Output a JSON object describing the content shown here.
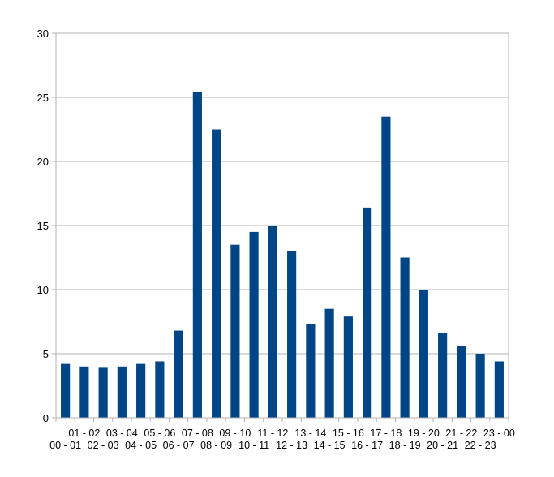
{
  "chart_data": {
    "type": "bar",
    "title": "",
    "xlabel": "",
    "ylabel": "",
    "ylim": [
      0,
      30
    ],
    "yticks": [
      0,
      5,
      10,
      15,
      20,
      25,
      30
    ],
    "grid": true,
    "legend": "none",
    "categories": [
      "00 - 01",
      "01 - 02",
      "02 - 03",
      "03 - 04",
      "04 - 05",
      "05 - 06",
      "06 - 07",
      "07 - 08",
      "08 - 09",
      "09 - 10",
      "10 - 11",
      "11 - 12",
      "12 - 13",
      "13 - 14",
      "14 - 15",
      "15 - 16",
      "16 - 17",
      "17 - 18",
      "18 - 19",
      "19 - 20",
      "20 - 21",
      "21 - 22",
      "22 - 23",
      "23 - 00"
    ],
    "values": [
      4.2,
      4.0,
      3.9,
      4.0,
      4.2,
      4.4,
      6.8,
      25.4,
      22.5,
      13.5,
      14.5,
      15.0,
      13.0,
      7.3,
      8.5,
      7.9,
      16.4,
      23.5,
      12.5,
      10.0,
      6.6,
      5.6,
      5.0,
      4.4
    ],
    "colors": {
      "bar": "#004586",
      "grid": "#b3b3b3",
      "axis": "#b3b3b3"
    }
  }
}
